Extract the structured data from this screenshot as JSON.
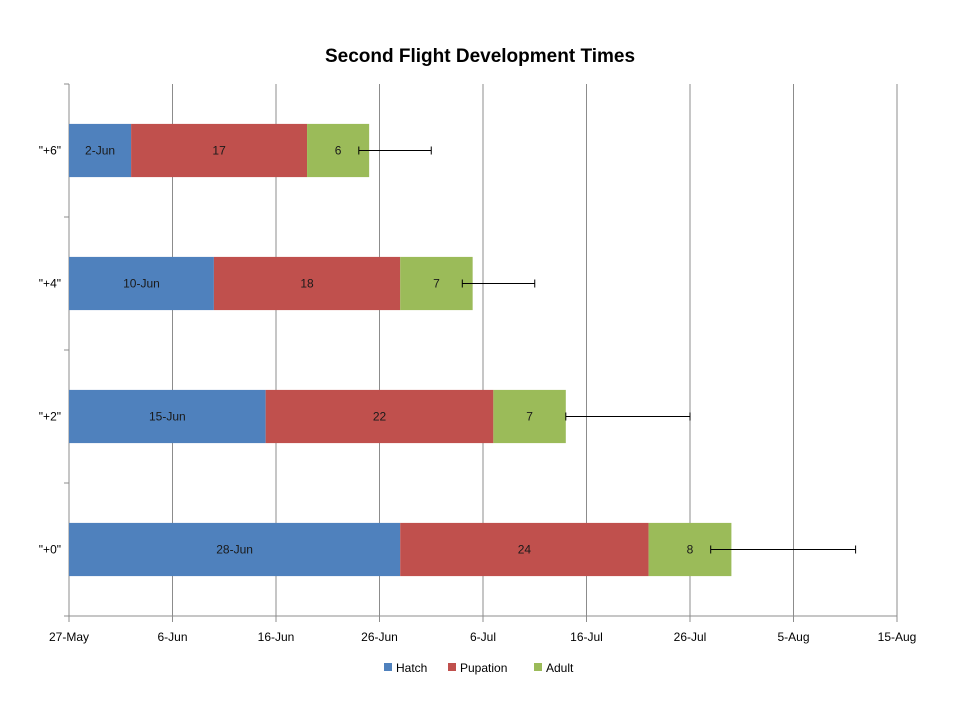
{
  "chart_data": {
    "type": "bar",
    "orientation": "horizontal",
    "stacked": true,
    "title": "Second Flight Development Times",
    "xlabel": "",
    "ylabel": "",
    "categories": [
      "\"+6\"",
      "\"+4\"",
      "\"+2\"",
      "\"+0\""
    ],
    "x_axis": {
      "type": "date",
      "min": "2012-05-27",
      "max": "2012-08-15",
      "tick_step_days": 10,
      "tick_labels": [
        "27-May",
        "6-Jun",
        "16-Jun",
        "26-Jun",
        "6-Jul",
        "16-Jul",
        "26-Jul",
        "5-Aug",
        "15-Aug"
      ]
    },
    "hatch_dates": [
      "2012-06-02",
      "2012-06-10",
      "2012-06-15",
      "2012-06-28"
    ],
    "series": [
      {
        "name": "Hatch",
        "color": "#4f81bd",
        "labels": [
          "2-Jun",
          "10-Jun",
          "15-Jun",
          "28-Jun"
        ]
      },
      {
        "name": "Pupation",
        "color": "#c0504d",
        "values": [
          17,
          18,
          22,
          24
        ],
        "labels": [
          "17",
          "18",
          "22",
          "24"
        ]
      },
      {
        "name": "Adult",
        "color": "#9bbb59",
        "values": [
          6,
          7,
          7,
          8
        ],
        "labels": [
          "6",
          "7",
          "7",
          "8"
        ]
      }
    ],
    "error_bars": {
      "series": "Adult",
      "ranges": [
        [
          "2012-06-24",
          "2012-07-01"
        ],
        [
          "2012-07-04",
          "2012-07-11"
        ],
        [
          "2012-07-14",
          "2012-07-26"
        ],
        [
          "2012-07-28",
          "2012-08-11"
        ]
      ]
    },
    "grid": {
      "vertical": true,
      "horizontal": false
    },
    "legend": "bottom"
  }
}
